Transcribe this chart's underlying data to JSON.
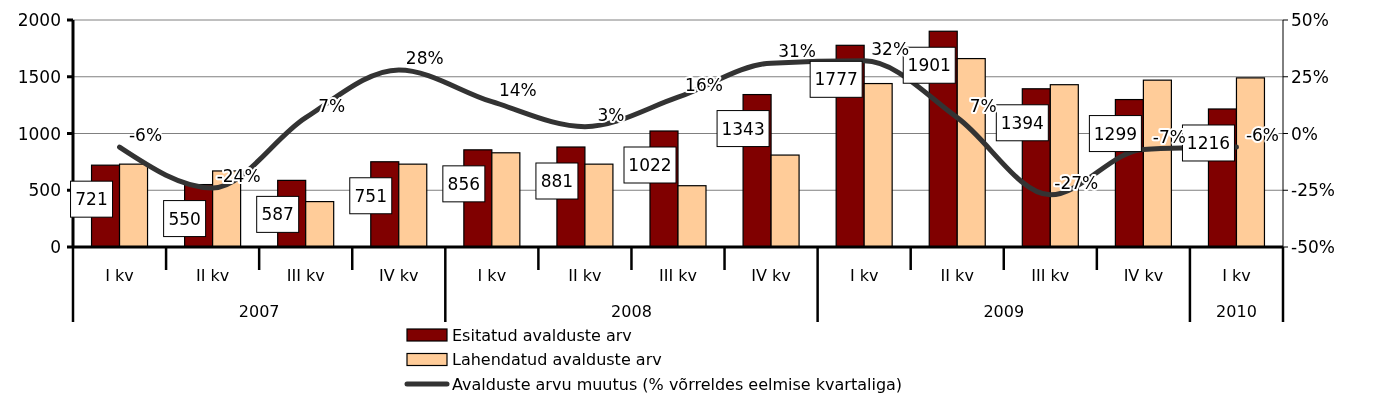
{
  "chart_data": {
    "type": "bar",
    "categories": [
      "I kv",
      "II kv",
      "III kv",
      "IV kv",
      "I kv",
      "II kv",
      "III kv",
      "IV kv",
      "I kv",
      "II kv",
      "III kv",
      "IV kv",
      "I kv"
    ],
    "series": [
      {
        "name": "Esitatud avalduste arv",
        "color": "#800000",
        "values": [
          721,
          550,
          587,
          751,
          856,
          881,
          1022,
          1343,
          1777,
          1901,
          1394,
          1299,
          1216
        ],
        "value_labels": [
          "721",
          "550",
          "587",
          "751",
          "856",
          "881",
          "1022",
          "1343",
          "1777",
          "1901",
          "1394",
          "1299",
          "1216"
        ]
      },
      {
        "name": "Lahendatud avalduste arv",
        "color": "#ffcc99",
        "values": [
          730,
          670,
          400,
          730,
          830,
          730,
          540,
          810,
          1440,
          1660,
          1430,
          1470,
          1490
        ]
      },
      {
        "name": "Avalduste arvu muutus (% võrreldes eelmise kvartaliga)",
        "type": "line",
        "axis": "y2",
        "color": "#333333",
        "values": [
          -6,
          -24,
          7,
          28,
          14,
          3,
          16,
          31,
          32,
          7,
          -27,
          -7,
          -6
        ],
        "value_labels": [
          "-6%",
          "-24%",
          "7%",
          "28%",
          "14%",
          "3%",
          "16%",
          "31%",
          "32%",
          "7%",
          "-27%",
          "-7%",
          "-6%"
        ]
      }
    ],
    "ylim": [
      0,
      2000
    ],
    "yticks": [
      0,
      500,
      1000,
      1500,
      2000
    ],
    "y2lim": [
      -50,
      50
    ],
    "y2ticks": [
      {
        "value": -50,
        "label": "-50%"
      },
      {
        "value": -25,
        "label": "-25%"
      },
      {
        "value": 0,
        "label": "0%"
      },
      {
        "value": 25,
        "label": "25%"
      },
      {
        "value": 50,
        "label": "50%"
      }
    ],
    "annotations": [
      "2007",
      "2008",
      "2009",
      "2010"
    ],
    "grid": "y",
    "legend": "bottom",
    "line_style": "solid"
  }
}
